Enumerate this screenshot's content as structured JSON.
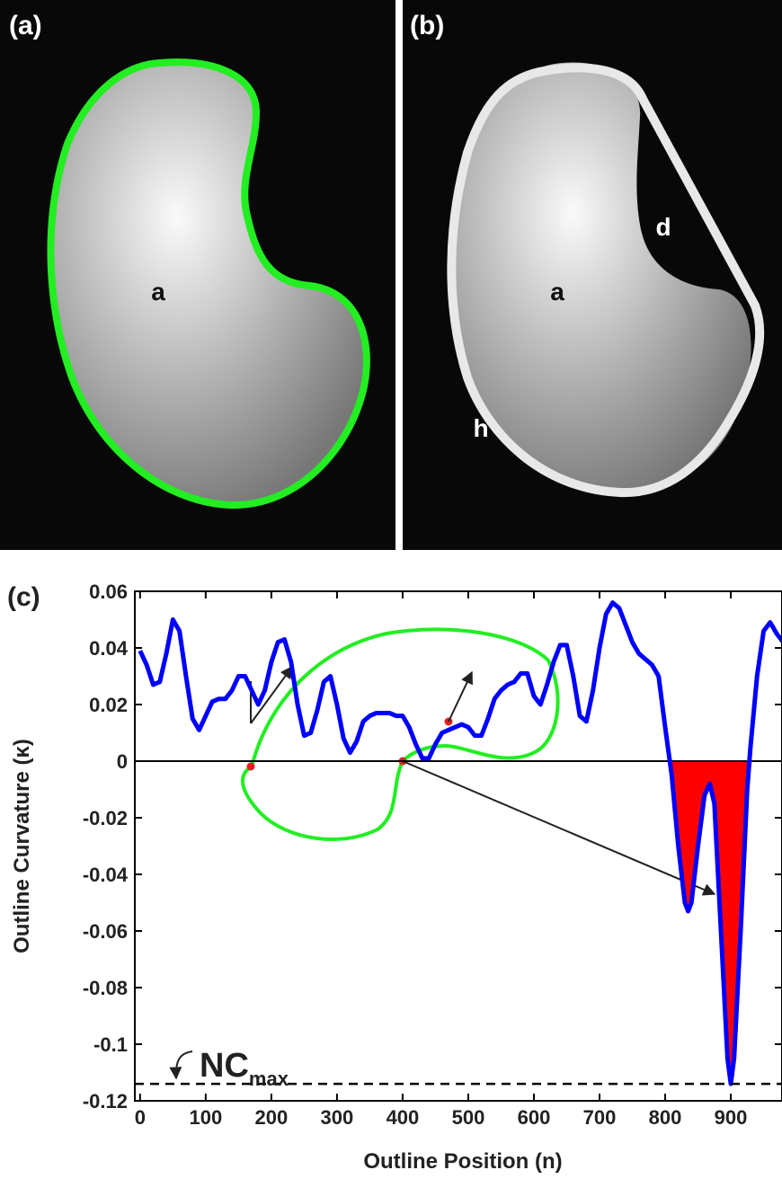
{
  "panels": [
    {
      "label": "(a)",
      "annotations": [
        "a"
      ]
    },
    {
      "label": "(b)",
      "annotations": [
        "a",
        "d",
        "h"
      ]
    },
    {
      "label": "(c)"
    }
  ],
  "chart_data": {
    "type": "line",
    "xlabel": "Outline Position (n)",
    "ylabel": "Outline Curvature (κ)",
    "xlim": [
      -8,
      978
    ],
    "ylim": [
      -0.12,
      0.06
    ],
    "xticks": [
      0,
      100,
      200,
      300,
      400,
      500,
      600,
      700,
      800,
      900
    ],
    "yticks": [
      0.06,
      0.04,
      0.02,
      0,
      -0.02,
      -0.04,
      -0.06,
      -0.08,
      -0.1,
      -0.12
    ],
    "x": [
      0,
      10,
      20,
      30,
      40,
      50,
      60,
      70,
      80,
      90,
      100,
      110,
      120,
      130,
      140,
      150,
      160,
      170,
      180,
      190,
      200,
      210,
      220,
      230,
      240,
      250,
      260,
      270,
      280,
      290,
      300,
      310,
      320,
      330,
      340,
      350,
      360,
      370,
      380,
      390,
      400,
      410,
      420,
      430,
      440,
      450,
      460,
      470,
      480,
      490,
      500,
      510,
      520,
      530,
      540,
      550,
      560,
      570,
      580,
      590,
      600,
      610,
      620,
      630,
      640,
      650,
      660,
      670,
      680,
      690,
      700,
      710,
      720,
      730,
      740,
      750,
      760,
      770,
      780,
      790,
      800,
      810,
      820,
      830,
      835,
      840,
      850,
      860,
      868,
      875,
      885,
      895,
      900,
      905,
      915,
      925,
      930,
      940,
      950,
      960,
      970,
      980
    ],
    "series": [
      {
        "color": "#0000ff",
        "negative_fill": "#ff0000",
        "values": [
          0.039,
          0.034,
          0.027,
          0.028,
          0.038,
          0.05,
          0.046,
          0.03,
          0.015,
          0.011,
          0.016,
          0.021,
          0.022,
          0.022,
          0.025,
          0.03,
          0.03,
          0.025,
          0.02,
          0.025,
          0.035,
          0.042,
          0.043,
          0.035,
          0.02,
          0.009,
          0.01,
          0.018,
          0.028,
          0.03,
          0.02,
          0.008,
          0.003,
          0.007,
          0.014,
          0.016,
          0.017,
          0.017,
          0.017,
          0.016,
          0.016,
          0.012,
          0.006,
          0.001,
          0.001,
          0.006,
          0.01,
          0.011,
          0.012,
          0.013,
          0.012,
          0.009,
          0.009,
          0.015,
          0.022,
          0.025,
          0.027,
          0.028,
          0.031,
          0.031,
          0.023,
          0.02,
          0.027,
          0.035,
          0.041,
          0.041,
          0.03,
          0.016,
          0.014,
          0.025,
          0.04,
          0.052,
          0.056,
          0.054,
          0.048,
          0.042,
          0.038,
          0.036,
          0.034,
          0.03,
          0.012,
          -0.005,
          -0.03,
          -0.05,
          -0.053,
          -0.05,
          -0.03,
          -0.012,
          -0.008,
          -0.015,
          -0.06,
          -0.105,
          -0.114,
          -0.105,
          -0.06,
          -0.01,
          0.005,
          0.03,
          0.046,
          0.049,
          0.045,
          0.042
        ]
      }
    ],
    "threshold": {
      "value": -0.114,
      "label": "NC",
      "label_sub": "max"
    }
  }
}
